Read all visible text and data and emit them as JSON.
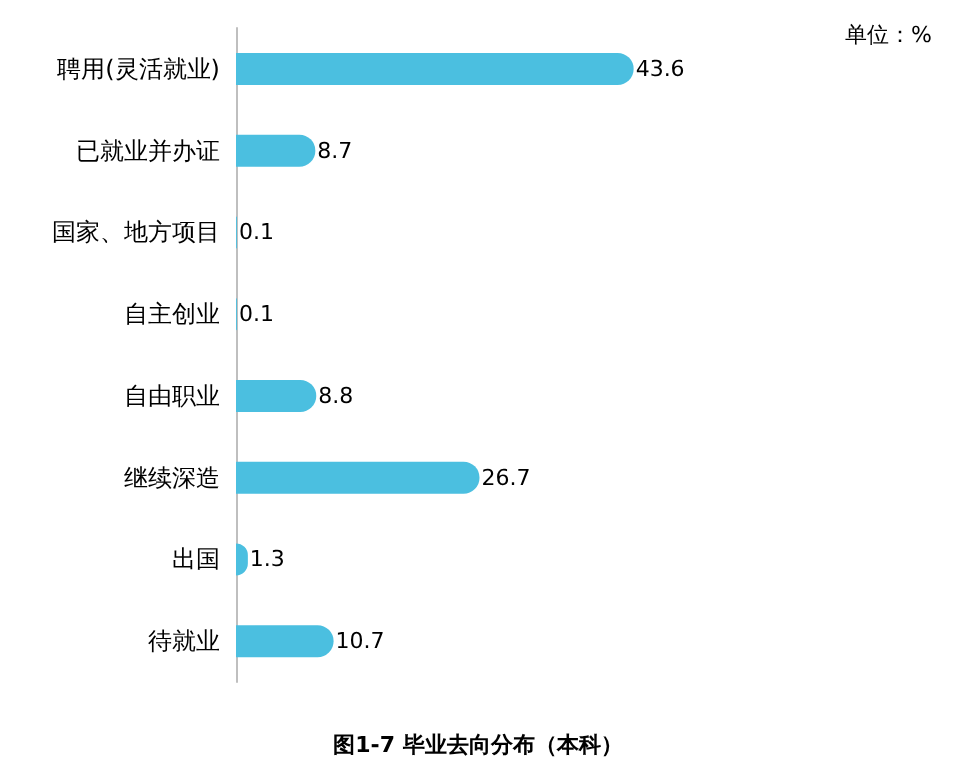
{
  "chart_data": {
    "type": "bar",
    "orientation": "horizontal",
    "title": "图1-7 毕业去向分布（本科）",
    "annotations": [
      "单位：%"
    ],
    "categories": [
      "聘用(灵活就业)",
      "已就业并办证",
      "国家、地方项目",
      "自主创业",
      "自由职业",
      "继续深造",
      "出国",
      "待就业"
    ],
    "values": [
      43.6,
      8.7,
      0.1,
      0.1,
      8.8,
      26.7,
      1.3,
      10.7
    ],
    "color": "#4bbfe0",
    "data_labels": true
  }
}
